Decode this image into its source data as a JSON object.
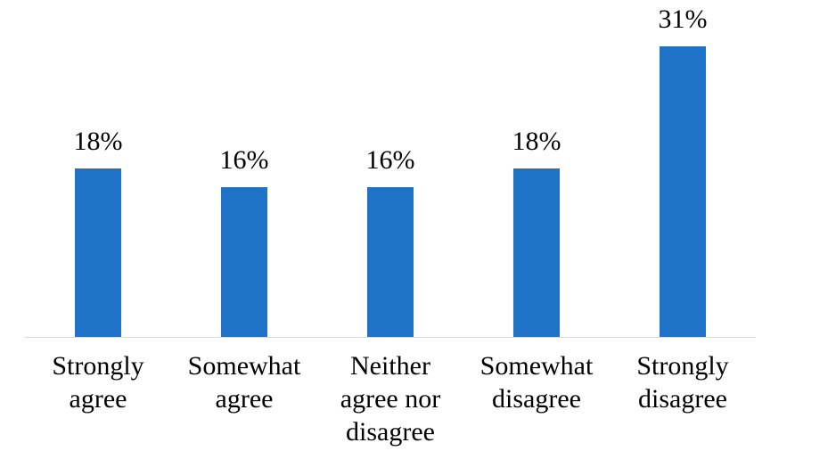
{
  "chart_data": {
    "type": "bar",
    "categories": [
      "Strongly agree",
      "Somewhat agree",
      "Neither agree nor disagree",
      "Somewhat disagree",
      "Strongly disagree"
    ],
    "values": [
      18,
      16,
      16,
      18,
      31
    ],
    "data_labels": [
      "18%",
      "16%",
      "16%",
      "18%",
      "31%"
    ],
    "title": "",
    "xlabel": "",
    "ylabel": "",
    "ylim": [
      0,
      36
    ],
    "grid": false,
    "legend_position": "none",
    "bar_color": "#1F73C7",
    "axis_line_color": "#D9D9D9",
    "label_color": "#000000"
  }
}
